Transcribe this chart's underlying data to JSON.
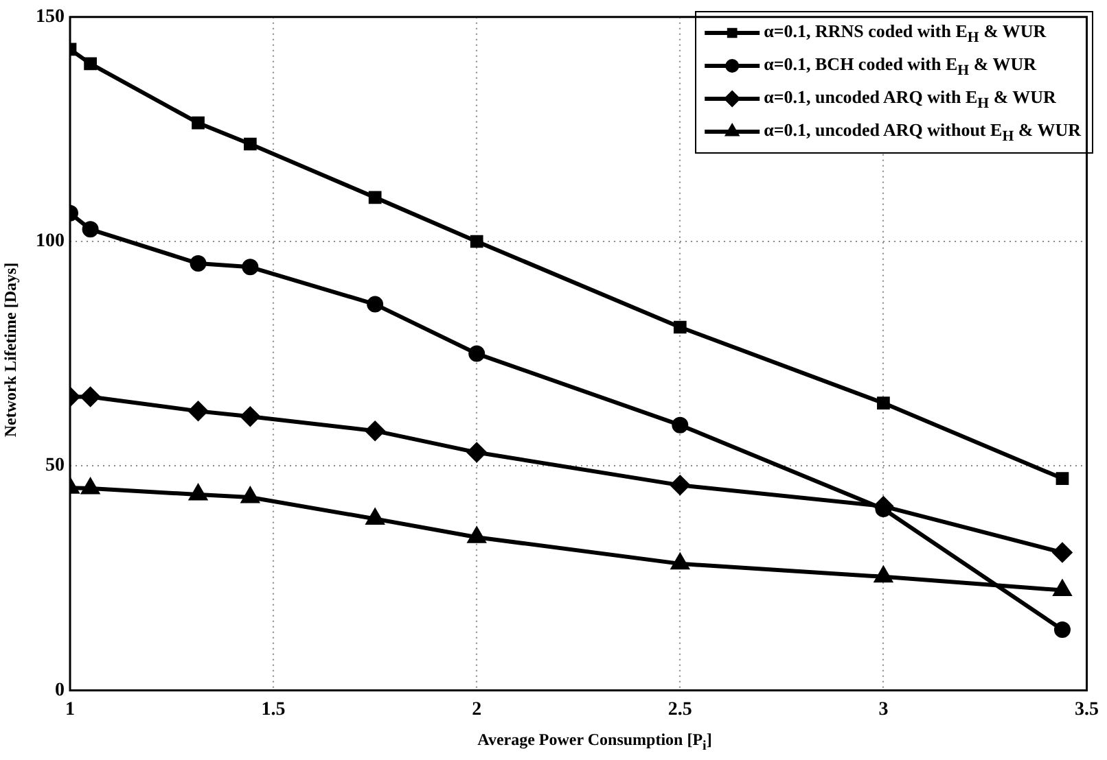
{
  "chart_data": {
    "type": "line",
    "xlabel": "Average Power Consumption [P$_{i}$]",
    "ylabel": "Network Lifetime [Days]",
    "x": [
      1,
      1.05,
      1.315,
      1.443,
      1.75,
      2,
      2.5,
      3,
      3.44
    ],
    "series": [
      {
        "name": "α=0.1, RRNS coded with E$_{H}$ & WUR",
        "color": "#000000",
        "marker": "square",
        "values": [
          142.8,
          139.6,
          126.4,
          121.7,
          109.8,
          100,
          80.9,
          64,
          47.2
        ]
      },
      {
        "name": "α=0.1, BCH coded with E$_{H}$ & WUR",
        "color": "#000000",
        "marker": "circle",
        "values": [
          106.3,
          102.7,
          95.1,
          94.3,
          86,
          75,
          59.1,
          40.4,
          13.5
        ]
      },
      {
        "name": "α=0.1, uncoded ARQ with E$_{H}$ & WUR",
        "color": "#000000",
        "marker": "diamond",
        "values": [
          65.4,
          65.4,
          62.2,
          61,
          57.8,
          53,
          45.7,
          41,
          30.7
        ]
      },
      {
        "name": "α=0.1, uncoded ARQ without E$_{H}$ & WUR",
        "color": "#000000",
        "marker": "triangle",
        "values": [
          45.1,
          45,
          43.6,
          43,
          38.2,
          34.1,
          28.2,
          25.3,
          22.3
        ]
      }
    ],
    "xlim": [
      1,
      3.5
    ],
    "xticks": [
      1,
      1.5,
      2,
      2.5,
      3,
      3.5
    ],
    "ylim": [
      0,
      150
    ],
    "yticks": [
      0,
      50,
      100,
      150
    ],
    "grid": true,
    "legend": "top right",
    "line_style": "solid"
  }
}
